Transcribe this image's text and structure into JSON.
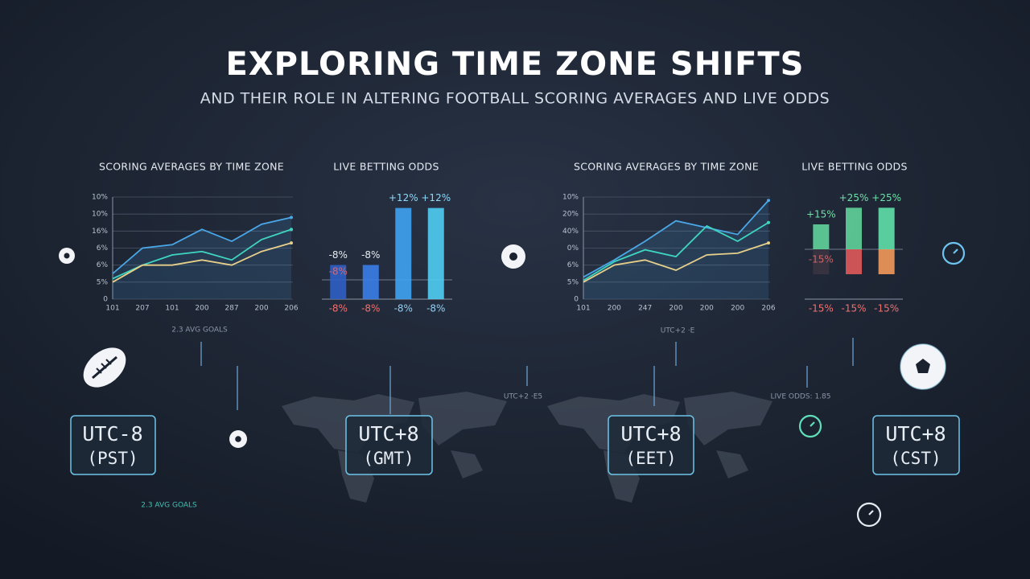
{
  "header": {
    "title": "EXPLORING TIME ZONE SHIFTS",
    "subtitle": "AND THEIR ROLE IN ALTERING FOOTBALL SCORING AVERAGES AND LIVE ODDS"
  },
  "chart_data": [
    {
      "type": "line",
      "title": "SCORING AVERAGES BY TIME ZONE",
      "categories": [
        "101",
        "207",
        "101",
        "200",
        "287",
        "200",
        "206"
      ],
      "ylim": [
        0,
        6
      ],
      "yticks": [
        0,
        {
          "value": 1,
          "label": "5%"
        },
        {
          "value": 2,
          "label": "6%"
        },
        {
          "value": 3,
          "label": "6%"
        },
        {
          "value": 4,
          "label": "16%"
        },
        {
          "value": 5,
          "label": "10%"
        },
        {
          "value": 6,
          "label": "10%"
        }
      ],
      "grid": true,
      "series": [
        {
          "color": "#4aa8e8",
          "values": [
            1.5,
            3.0,
            3.2,
            4.1,
            3.4,
            4.4,
            4.8
          ]
        },
        {
          "color": "#3fd6c0",
          "values": [
            1.2,
            2.0,
            2.6,
            2.8,
            2.3,
            3.5,
            4.1
          ]
        },
        {
          "color": "#e8d08a",
          "values": [
            1.0,
            2.0,
            2.0,
            2.3,
            2.0,
            2.8,
            3.3
          ]
        }
      ]
    },
    {
      "type": "bar",
      "title": "LIVE BETTING ODDS",
      "categories": [
        "-8%",
        "-8%",
        "-8%",
        "-8%"
      ],
      "ylim": [
        -20,
        15
      ],
      "series": [
        {
          "colors": [
            "#2f5fc4",
            "#3a7ee8",
            "#3fa2f2",
            "#4fcdf2"
          ],
          "values": [
            -8,
            -8,
            12,
            12
          ],
          "value_labels": [
            "-8%",
            "-8%",
            "+12%",
            "+12%"
          ]
        }
      ],
      "annotation": "-8%"
    },
    {
      "type": "line",
      "title": "SCORING AVERAGES BY TIME ZONE",
      "categories": [
        "101",
        "200",
        "247",
        "200",
        "200",
        "200",
        "206"
      ],
      "ylim": [
        0,
        6
      ],
      "yticks": [
        0,
        {
          "value": 1,
          "label": "5%"
        },
        {
          "value": 2,
          "label": "6%"
        },
        {
          "value": 3,
          "label": "0%"
        },
        {
          "value": 4,
          "label": "40%"
        },
        {
          "value": 5,
          "label": "20%"
        },
        {
          "value": 6,
          "label": "10%"
        }
      ],
      "grid": true,
      "series": [
        {
          "color": "#4aa8e8",
          "values": [
            1.3,
            2.3,
            3.4,
            4.6,
            4.2,
            3.8,
            5.8
          ]
        },
        {
          "color": "#3fd6c0",
          "values": [
            1.1,
            2.2,
            2.9,
            2.5,
            4.3,
            3.4,
            4.5
          ]
        },
        {
          "color": "#e8d08a",
          "values": [
            1.0,
            2.0,
            2.3,
            1.7,
            2.6,
            2.7,
            3.3
          ]
        }
      ]
    },
    {
      "type": "bar",
      "title": "LIVE BETTING ODDS",
      "categories": [
        "-15%",
        "-15%",
        "-15%"
      ],
      "ylim": [
        -30,
        30
      ],
      "series": [
        {
          "colors": [
            "#5fd39a",
            "#5fd39a",
            "#5fe0a8"
          ],
          "values": [
            15,
            25,
            25
          ],
          "value_labels": [
            "+15%",
            "+25%",
            "+25%"
          ]
        },
        {
          "colors": [
            "#3a3340",
            "#e05a5a",
            "#f29a5a"
          ],
          "values": [
            -15,
            -15,
            -15
          ]
        }
      ],
      "annotation": "-15%"
    }
  ],
  "timeline": {
    "labels": [
      "2.3 AVG GOALS",
      "UTC+2 ·E5",
      "UTC+2 ·E",
      "LIVE ODDS: 1.85",
      "2.3 AVG GOALS"
    ]
  },
  "zones": [
    {
      "offset": "UTC-8",
      "name": "(PST)"
    },
    {
      "offset": "UTC+8",
      "name": "(GMT)"
    },
    {
      "offset": "UTC+8",
      "name": "(EET)"
    },
    {
      "offset": "UTC+8",
      "name": "(CST)"
    }
  ]
}
